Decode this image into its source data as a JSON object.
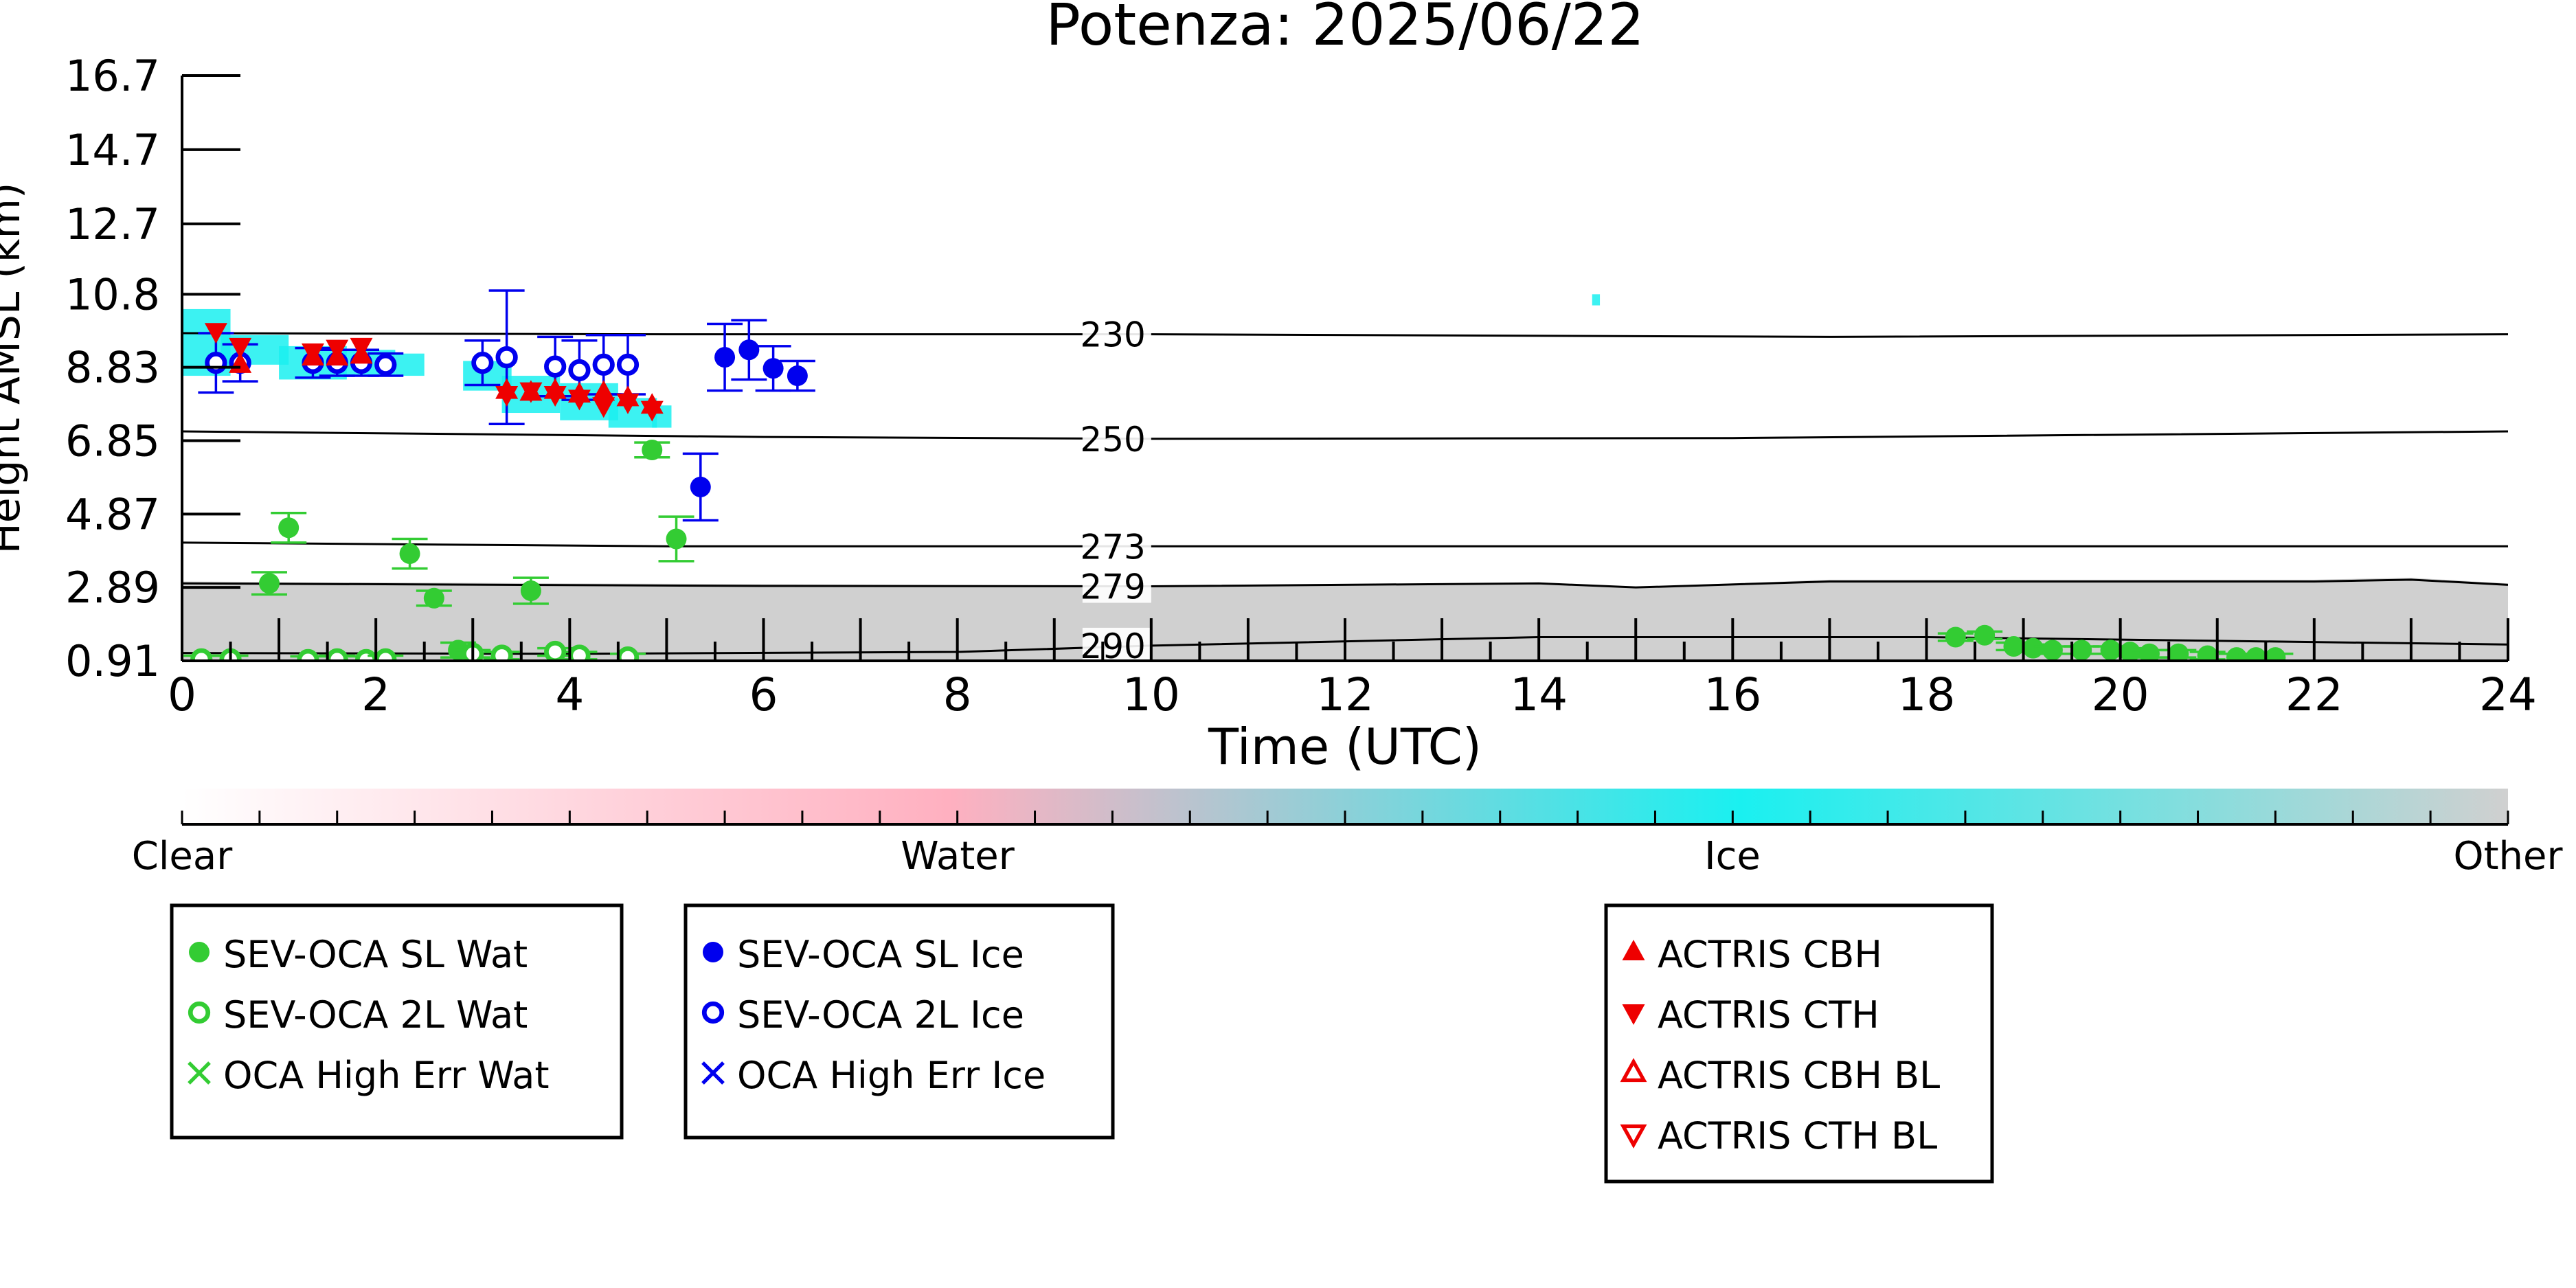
{
  "chart_data": {
    "type": "scatter",
    "title": "Potenza: 2025/06/22",
    "xlabel": "Time (UTC)",
    "ylabel": "Height AMSL (km)",
    "xlim": [
      0,
      24
    ],
    "ylim": [
      0.91,
      16.7
    ],
    "x_ticks": [
      "0",
      "2",
      "4",
      "6",
      "8",
      "10",
      "12",
      "14",
      "16",
      "18",
      "20",
      "22",
      "24"
    ],
    "y_ticks": [
      "0.91",
      "2.89",
      "4.87",
      "6.85",
      "8.83",
      "10.8",
      "12.7",
      "14.7",
      "16.7"
    ],
    "isotherms": [
      {
        "label": "230",
        "points": [
          [
            0,
            9.75
          ],
          [
            5,
            9.72
          ],
          [
            10,
            9.72
          ],
          [
            17,
            9.65
          ],
          [
            24,
            9.72
          ]
        ]
      },
      {
        "label": "250",
        "points": [
          [
            0,
            7.1
          ],
          [
            6,
            6.95
          ],
          [
            10,
            6.9
          ],
          [
            16,
            6.92
          ],
          [
            24,
            7.1
          ]
        ]
      },
      {
        "label": "273",
        "points": [
          [
            0,
            4.1
          ],
          [
            5,
            4.0
          ],
          [
            10,
            4.0
          ],
          [
            16,
            4.0
          ],
          [
            24,
            4.0
          ]
        ]
      },
      {
        "label": "279",
        "points": [
          [
            0,
            3.0
          ],
          [
            6,
            2.93
          ],
          [
            10,
            2.92
          ],
          [
            14,
            3.0
          ],
          [
            15,
            2.89
          ],
          [
            17,
            3.05
          ],
          [
            22,
            3.05
          ],
          [
            23,
            3.1
          ],
          [
            24,
            2.96
          ]
        ]
      },
      {
        "label": "290",
        "points": [
          [
            0,
            1.12
          ],
          [
            4,
            1.1
          ],
          [
            8,
            1.15
          ],
          [
            10,
            1.32
          ],
          [
            14,
            1.55
          ],
          [
            18,
            1.55
          ],
          [
            21,
            1.45
          ],
          [
            24,
            1.35
          ]
        ]
      }
    ],
    "series": [
      {
        "name": "SEV-OCA SL Wat",
        "marker": "filled-circle",
        "color": "#33cc33",
        "x": [
          0.9,
          1.1,
          2.35,
          2.6,
          2.85,
          3.6,
          4.85,
          5.1,
          18.3,
          18.6,
          18.9,
          19.1,
          19.3,
          19.6,
          19.9,
          20.1,
          20.3,
          20.6,
          20.9,
          21.2,
          21.4,
          21.6
        ],
        "y": [
          3.0,
          4.5,
          3.8,
          2.6,
          1.2,
          2.8,
          6.6,
          4.2,
          1.55,
          1.6,
          1.3,
          1.25,
          1.2,
          1.2,
          1.2,
          1.15,
          1.1,
          1.1,
          1.05,
          1.0,
          1.0,
          1.0
        ],
        "err": [
          0.3,
          0.4,
          0.4,
          0.2,
          0.2,
          0.35,
          0.2,
          0.6,
          0.1,
          0.1,
          0.1,
          0.1,
          0.1,
          0.1,
          0.1,
          0.1,
          0.1,
          0.1,
          0.1,
          0.1,
          0.1,
          0.1
        ]
      },
      {
        "name": "SEV-OCA 2L Wat",
        "marker": "open-circle",
        "color": "#33cc33",
        "x": [
          0.2,
          0.5,
          1.3,
          1.6,
          1.9,
          2.1,
          3.0,
          3.3,
          3.85,
          4.1,
          4.6
        ],
        "y": [
          0.95,
          0.95,
          0.93,
          0.95,
          0.93,
          0.95,
          1.1,
          1.05,
          1.15,
          1.05,
          1.0
        ],
        "err": [
          0.1,
          0.1,
          0.1,
          0.1,
          0.1,
          0.1,
          0.1,
          0.1,
          0.1,
          0.1,
          0.1
        ]
      },
      {
        "name": "OCA High Err Wat",
        "marker": "x",
        "color": "#33cc33",
        "x": [],
        "y": []
      },
      {
        "name": "SEV-OCA SL Ice",
        "marker": "filled-circle",
        "color": "#0000ee",
        "x": [
          5.35,
          5.6,
          5.85,
          6.1,
          6.35
        ],
        "y": [
          5.6,
          9.1,
          9.3,
          8.8,
          8.6
        ],
        "err": [
          0.9,
          0.9,
          0.8,
          0.6,
          0.4
        ]
      },
      {
        "name": "SEV-OCA 2L Ice",
        "marker": "open-circle",
        "color": "#0000ee",
        "x": [
          0.35,
          0.6,
          1.35,
          1.6,
          1.85,
          2.1,
          3.1,
          3.35,
          3.85,
          4.1,
          4.35,
          4.6
        ],
        "y": [
          8.95,
          8.95,
          8.95,
          8.95,
          8.95,
          8.9,
          8.95,
          9.1,
          8.85,
          8.75,
          8.9,
          8.9
        ],
        "err": [
          0.8,
          0.5,
          0.4,
          0.35,
          0.35,
          0.3,
          0.6,
          1.8,
          0.8,
          0.8,
          0.8,
          0.8
        ]
      },
      {
        "name": "OCA High Err Ice",
        "marker": "x",
        "color": "#0000ee",
        "x": [],
        "y": []
      },
      {
        "name": "ACTRIS CBH",
        "marker": "triangle-up",
        "color": "#ee0000",
        "x": [
          0.6,
          1.35,
          1.6,
          1.85,
          3.35,
          3.6,
          3.85,
          4.1,
          4.35,
          4.6,
          4.85
        ],
        "y": [
          8.9,
          9.1,
          9.1,
          9.15,
          8.2,
          8.15,
          8.2,
          8.1,
          8.15,
          8.0,
          7.8
        ],
        "err": []
      },
      {
        "name": "ACTRIS CTH",
        "marker": "triangle-down",
        "color": "#ee0000",
        "x": [
          0.35,
          0.6,
          1.35,
          1.6,
          1.85,
          3.35,
          3.6,
          3.85,
          4.1,
          4.35,
          4.6,
          4.85
        ],
        "y": [
          9.8,
          9.4,
          9.25,
          9.35,
          9.4,
          8.1,
          8.2,
          8.1,
          8.0,
          7.8,
          7.9,
          7.7
        ],
        "err": []
      },
      {
        "name": "ACTRIS CBH BL",
        "marker": "open-triangle-up",
        "color": "#ee0000",
        "x": [],
        "y": []
      },
      {
        "name": "ACTRIS CTH BL",
        "marker": "open-triangle-down",
        "color": "#ee0000",
        "x": [],
        "y": []
      }
    ],
    "colorbar": {
      "labels": [
        "Clear",
        "Water",
        "Ice",
        "Other"
      ],
      "colors": [
        "#ffffff",
        "#ffb0c0",
        "#1af0f0",
        "#d0d0d0"
      ]
    },
    "legend_groups": [
      [
        "SEV-OCA SL Wat",
        "SEV-OCA 2L Wat",
        "OCA High Err Wat"
      ],
      [
        "SEV-OCA SL Ice",
        "SEV-OCA 2L Ice",
        "OCA High Err Ice"
      ],
      [
        "ACTRIS CBH",
        "ACTRIS CTH",
        "ACTRIS CBH BL",
        "ACTRIS CTH BL"
      ]
    ],
    "legend_placement": "bottom",
    "grid": false,
    "cloud_mask": {
      "ice_color": "#1af0f0",
      "other_color": "#d0d0d0"
    }
  }
}
